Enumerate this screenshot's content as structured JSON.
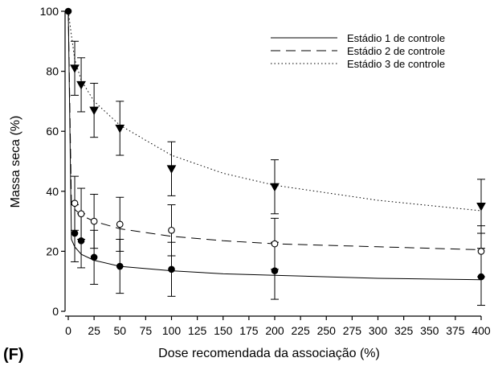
{
  "chart_data": {
    "type": "scatter",
    "panel_label": "(F)",
    "xlabel": "Dose recomendada da associação (%)",
    "ylabel": "Massa seca (%)",
    "xlim": [
      0,
      400
    ],
    "ylim": [
      0,
      100
    ],
    "x_ticks": [
      0,
      25,
      50,
      75,
      100,
      125,
      150,
      175,
      200,
      225,
      250,
      275,
      300,
      325,
      350,
      375,
      400
    ],
    "y_ticks": [
      0,
      20,
      40,
      60,
      80,
      100
    ],
    "legend_position": "top-right",
    "grid": false,
    "series": [
      {
        "name": "Estádio 1 de controle",
        "line_style": "solid",
        "marker": "filled-circle",
        "x": [
          0,
          6.25,
          12.5,
          25,
          50,
          100,
          200,
          400
        ],
        "y": [
          100,
          26,
          23.5,
          18,
          15,
          14,
          13.5,
          11.5
        ],
        "error": [
          0,
          9.5,
          9,
          9,
          9,
          9,
          9.5,
          9.5
        ],
        "fit": [
          [
            0,
            100
          ],
          [
            3,
            24
          ],
          [
            6.25,
            21.5
          ],
          [
            12.5,
            19
          ],
          [
            25,
            17
          ],
          [
            50,
            15
          ],
          [
            100,
            13.5
          ],
          [
            150,
            12.5
          ],
          [
            200,
            12
          ],
          [
            300,
            11
          ],
          [
            400,
            10.5
          ]
        ]
      },
      {
        "name": "Estádio 2 de controle",
        "line_style": "dashed",
        "marker": "open-circle",
        "x": [
          0,
          6.25,
          12.5,
          25,
          50,
          100,
          200,
          400
        ],
        "y": [
          100,
          36,
          32.5,
          30,
          29,
          27,
          22.5,
          20
        ],
        "error": [
          0,
          9,
          8.5,
          9,
          9,
          8.5,
          8.5,
          8.5
        ],
        "fit": [
          [
            0,
            100
          ],
          [
            3,
            36
          ],
          [
            6.25,
            34
          ],
          [
            12.5,
            32
          ],
          [
            25,
            30
          ],
          [
            50,
            27.5
          ],
          [
            100,
            25
          ],
          [
            150,
            23.5
          ],
          [
            200,
            22.5
          ],
          [
            300,
            21.5
          ],
          [
            400,
            20.5
          ]
        ]
      },
      {
        "name": "Estádio 3 de controle",
        "line_style": "dotted",
        "marker": "filled-triangle-down",
        "x": [
          0,
          6.25,
          12.5,
          25,
          50,
          100,
          200,
          400
        ],
        "y": [
          100,
          81,
          75.5,
          67,
          61,
          47.5,
          41.5,
          35
        ],
        "error": [
          0,
          9,
          9,
          9,
          9,
          9,
          9,
          9
        ],
        "fit": [
          [
            0,
            100
          ],
          [
            3,
            92
          ],
          [
            6.25,
            84
          ],
          [
            12.5,
            77
          ],
          [
            25,
            70
          ],
          [
            50,
            62
          ],
          [
            100,
            52
          ],
          [
            150,
            46
          ],
          [
            200,
            42
          ],
          [
            300,
            37
          ],
          [
            400,
            33.5
          ]
        ]
      }
    ]
  }
}
